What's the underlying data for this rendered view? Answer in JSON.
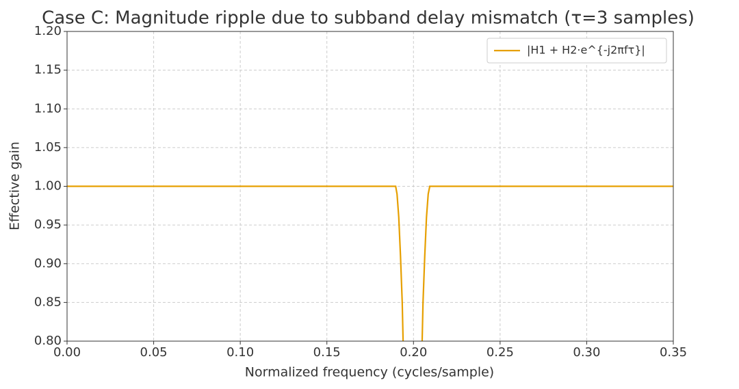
{
  "chart_data": {
    "type": "line",
    "title": "Case C: Magnitude ripple due to subband delay mismatch (τ=3 samples)",
    "xlabel": "Normalized frequency (cycles/sample)",
    "ylabel": "Effective gain",
    "x": [
      0,
      0.1897,
      0.1905,
      0.1915,
      0.1925,
      0.1935,
      0.194,
      0.2,
      0.205,
      0.2055,
      0.2065,
      0.2075,
      0.2085,
      0.2094,
      0.35
    ],
    "series": [
      {
        "name": "|H1 + H2·e^{-j2πfτ}|",
        "color": "#e69f00",
        "values": [
          1.0,
          1.0,
          0.99,
          0.96,
          0.91,
          0.85,
          0.8,
          null,
          0.8,
          0.85,
          0.91,
          0.96,
          0.99,
          1.0,
          1.0
        ]
      }
    ],
    "xlim": [
      0,
      0.35
    ],
    "ylim": [
      0.8,
      1.2
    ],
    "xticks": [
      {
        "value": 0,
        "label": "0.00"
      },
      {
        "value": 0.05,
        "label": "0.05"
      },
      {
        "value": 0.1,
        "label": "0.10"
      },
      {
        "value": 0.15,
        "label": "0.15"
      },
      {
        "value": 0.2,
        "label": "0.20"
      },
      {
        "value": 0.25,
        "label": "0.25"
      },
      {
        "value": 0.3,
        "label": "0.30"
      },
      {
        "value": 0.35,
        "label": "0.35"
      }
    ],
    "yticks": [
      {
        "value": 0.8,
        "label": "0.80"
      },
      {
        "value": 0.85,
        "label": "0.85"
      },
      {
        "value": 0.9,
        "label": "0.90"
      },
      {
        "value": 0.95,
        "label": "0.95"
      },
      {
        "value": 1.0,
        "label": "1.00"
      },
      {
        "value": 1.05,
        "label": "1.05"
      },
      {
        "value": 1.1,
        "label": "1.10"
      },
      {
        "value": 1.15,
        "label": "1.15"
      },
      {
        "value": 1.2,
        "label": "1.20"
      }
    ],
    "grid": true,
    "legend": "upper right"
  }
}
